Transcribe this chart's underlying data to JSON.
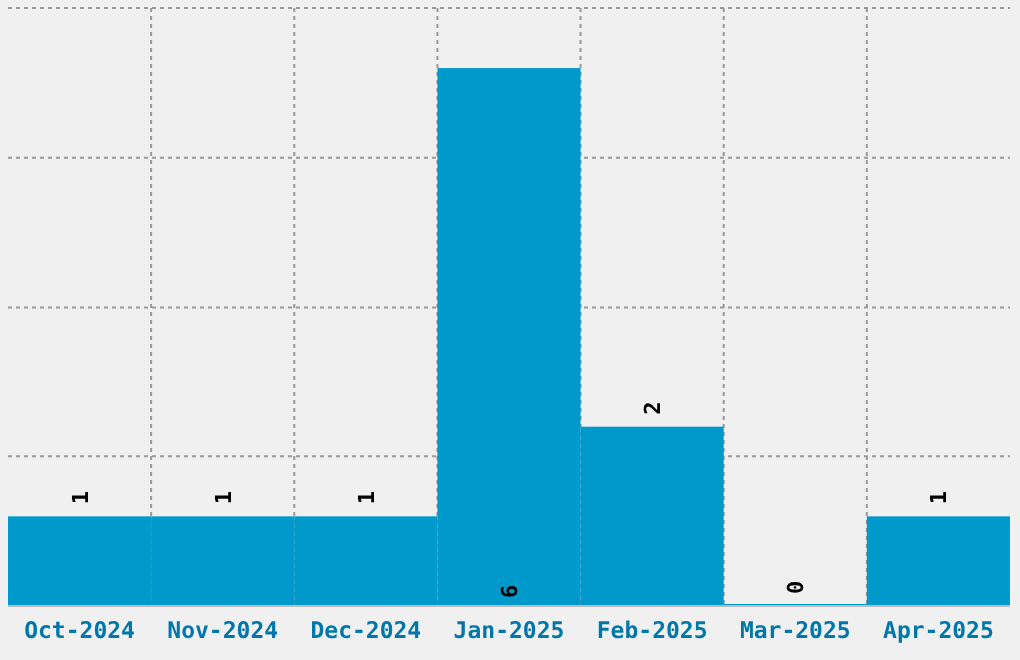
{
  "chart_data": {
    "type": "bar",
    "categories": [
      "Oct-2024",
      "Nov-2024",
      "Dec-2024",
      "Jan-2025",
      "Feb-2025",
      "Mar-2025",
      "Apr-2025"
    ],
    "values": [
      1,
      1,
      1,
      6,
      2,
      0,
      1
    ],
    "color": "#0099cc",
    "ylim": [
      0,
      6.67
    ],
    "yticks": [
      {
        "value": 1.67,
        "label": null
      },
      {
        "value": 3.33,
        "label": null
      },
      {
        "value": 5,
        "label": null
      },
      {
        "value": 6.67,
        "label": null
      }
    ],
    "tick_labels": "x",
    "grid": true,
    "data_labels": true
  }
}
